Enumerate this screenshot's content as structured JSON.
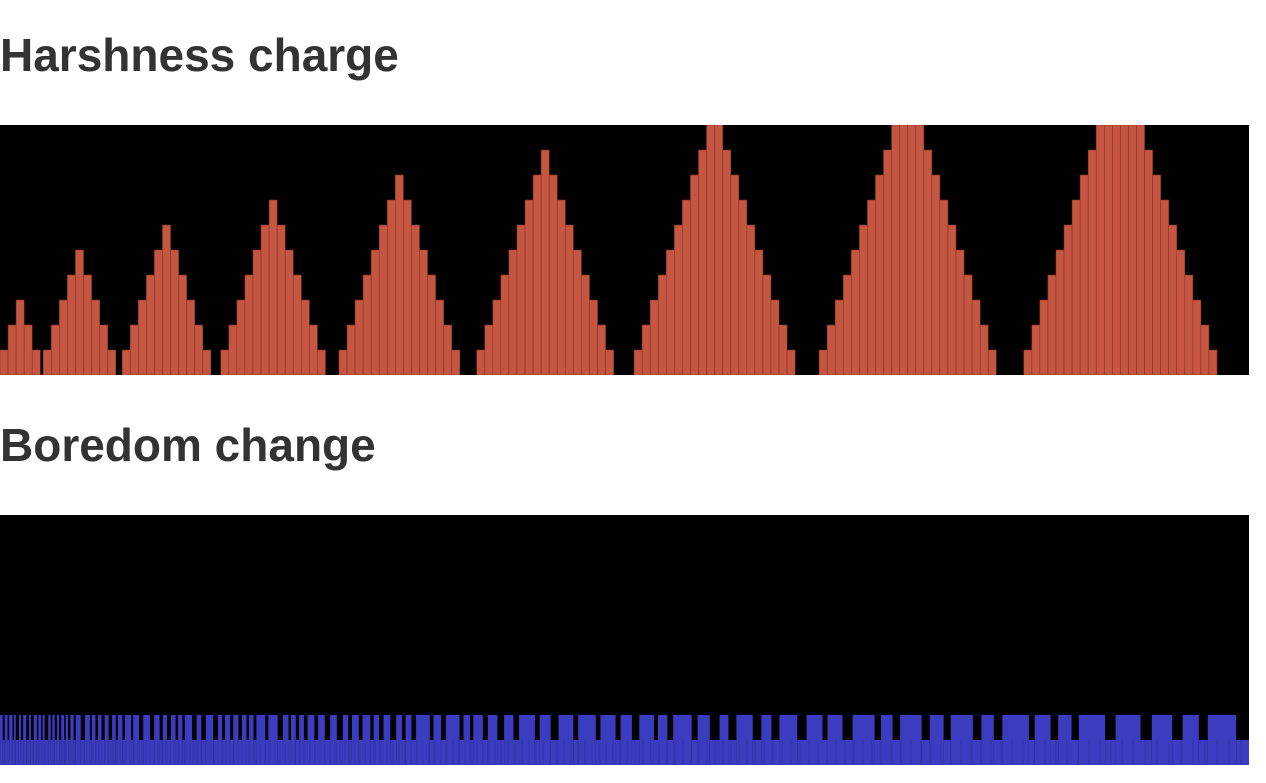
{
  "charts": {
    "harshness": {
      "title": "Harshness charge"
    },
    "boredom": {
      "title": "Boredom change"
    }
  },
  "chart_data": [
    {
      "type": "bar",
      "title": "Harshness charge",
      "bar_color": "#c45642",
      "background": "#000000",
      "ylim": [
        0,
        10
      ],
      "groups": [
        [
          1,
          2,
          3,
          2,
          1
        ],
        [
          1,
          2,
          3,
          4,
          5,
          4,
          3,
          2,
          1
        ],
        [
          1,
          2,
          3,
          4,
          5,
          6,
          5,
          4,
          3,
          2,
          1
        ],
        [
          1,
          2,
          3,
          4,
          5,
          6,
          7,
          6,
          5,
          4,
          3,
          2,
          1
        ],
        [
          1,
          2,
          3,
          4,
          5,
          6,
          7,
          8,
          7,
          6,
          5,
          4,
          3,
          2,
          1
        ],
        [
          1,
          2,
          3,
          4,
          5,
          6,
          7,
          8,
          9,
          8,
          7,
          6,
          5,
          4,
          3,
          2,
          1
        ],
        [
          1,
          2,
          3,
          4,
          5,
          6,
          7,
          8,
          9,
          10,
          10,
          9,
          8,
          7,
          6,
          5,
          4,
          3,
          2,
          1
        ],
        [
          1,
          2,
          3,
          4,
          5,
          6,
          7,
          8,
          9,
          10,
          10,
          10,
          10,
          9,
          8,
          7,
          6,
          5,
          4,
          3,
          2,
          1
        ],
        [
          1,
          2,
          3,
          4,
          5,
          6,
          7,
          8,
          9,
          10,
          10,
          10,
          10,
          10,
          10,
          9,
          8,
          7,
          6,
          5,
          4,
          3,
          2,
          1
        ]
      ]
    },
    {
      "type": "bar",
      "title": "Boredom change",
      "bar_color": "#3c3cc0",
      "background": "#000000",
      "ylim": [
        0,
        10
      ],
      "levels": [
        0,
        1,
        2
      ],
      "pattern": "alternating values of 1 and 2 across the full width, with transitions becoming less frequent from left to right"
    }
  ]
}
